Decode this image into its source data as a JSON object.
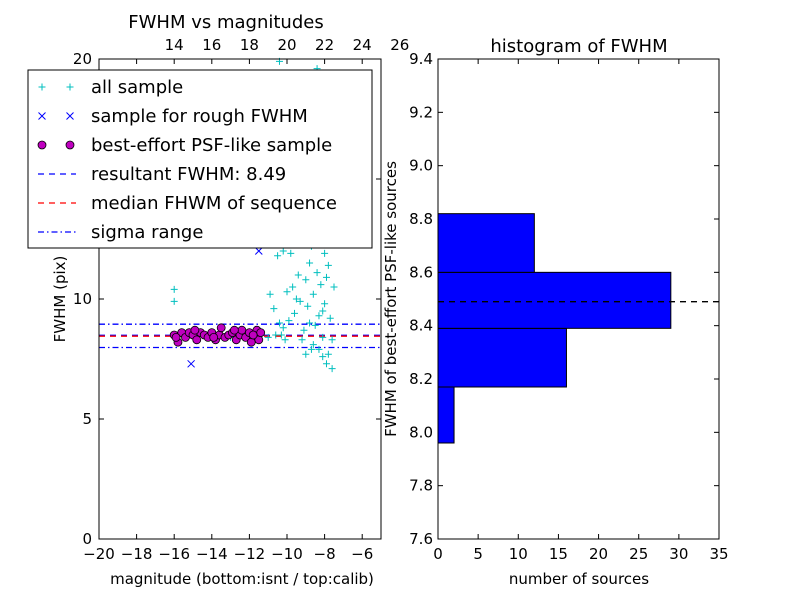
{
  "chart_data": [
    {
      "type": "scatter",
      "title": "FWHM vs magnitudes",
      "xlabel": "magnitude (bottom:isnt / top:calib)",
      "ylabel": "FWHM (pix)",
      "xlim": [
        -20,
        -5
      ],
      "ylim": [
        0,
        20
      ],
      "x_ticks": [
        -20,
        -18,
        -16,
        -14,
        -12,
        -10,
        -8,
        -6
      ],
      "x_tick_labels": [
        "−20",
        "−18",
        "−16",
        "−14",
        "−12",
        "−10",
        "−8",
        "−6"
      ],
      "y_ticks": [
        0,
        5,
        10,
        15,
        20
      ],
      "y_tick_labels": [
        "0",
        "5",
        "10",
        "15",
        "20"
      ],
      "top_axis": {
        "offset": 30,
        "ticks": [
          14,
          16,
          18,
          20,
          22,
          24,
          26
        ],
        "tick_labels": [
          "14",
          "16",
          "18",
          "20",
          "22",
          "24",
          "26"
        ]
      },
      "legend": {
        "placement": "top-left",
        "entries": [
          {
            "label": "all sample",
            "marker": "+",
            "color": "#00bfbf"
          },
          {
            "label": "sample for rough FWHM",
            "marker": "x",
            "color": "#0000ff"
          },
          {
            "label": "best-effort PSF-like sample",
            "marker": "o",
            "color": "#bf00bf"
          },
          {
            "label": "resultant FWHM: 8.49",
            "linestyle": "dashed",
            "color": "#0000ff"
          },
          {
            "label": "median FHWM of sequence",
            "linestyle": "dashed",
            "color": "#ff0000"
          },
          {
            "label": "sigma range",
            "linestyle": "dashdot",
            "color": "#0000ff"
          }
        ]
      },
      "lines": {
        "resultant_fwhm": 8.49,
        "median_fwhm": 8.45,
        "sigma_low": 7.98,
        "sigma_high": 8.95
      },
      "series": [
        {
          "name": "all sample",
          "marker": "+",
          "color": "#00bfbf",
          "points": [
            [
              -16.0,
              10.4
            ],
            [
              -16.0,
              9.9
            ],
            [
              -15.3,
              8.6
            ],
            [
              -14.8,
              8.5
            ],
            [
              -13.9,
              8.6
            ],
            [
              -13.0,
              8.4
            ],
            [
              -12.2,
              8.5
            ],
            [
              -11.8,
              8.3
            ],
            [
              -11.5,
              8.6
            ],
            [
              -11.0,
              8.4
            ],
            [
              -10.6,
              8.5
            ],
            [
              -10.3,
              8.5
            ],
            [
              -10.1,
              8.3
            ],
            [
              -10.4,
              9.0
            ],
            [
              -10.2,
              8.8
            ],
            [
              -10.7,
              9.6
            ],
            [
              -10.9,
              10.2
            ],
            [
              -10.5,
              11.8
            ],
            [
              -10.8,
              12.7
            ],
            [
              -10.1,
              14.2
            ],
            [
              -10.3,
              15.9
            ],
            [
              -9.8,
              11.9
            ],
            [
              -9.7,
              10.5
            ],
            [
              -9.6,
              9.4
            ],
            [
              -9.5,
              13.1
            ],
            [
              -9.6,
              16.8
            ],
            [
              -9.3,
              9.9
            ],
            [
              -9.1,
              8.7
            ],
            [
              -9.3,
              12.4
            ],
            [
              -9.2,
              14.6
            ],
            [
              -9.0,
              10.8
            ],
            [
              -8.9,
              9.7
            ],
            [
              -8.8,
              11.5
            ],
            [
              -8.9,
              13.7
            ],
            [
              -8.7,
              12.2
            ],
            [
              -8.6,
              10.2
            ],
            [
              -8.5,
              8.9
            ],
            [
              -8.6,
              14.8
            ],
            [
              -8.4,
              11.1
            ],
            [
              -8.3,
              9.3
            ],
            [
              -8.5,
              16.1
            ],
            [
              -8.2,
              12.8
            ],
            [
              -8.2,
              10.6
            ],
            [
              -8.1,
              8.4
            ],
            [
              -8.0,
              11.9
            ],
            [
              -8.0,
              9.8
            ],
            [
              -8.3,
              7.9
            ],
            [
              -8.1,
              7.6
            ],
            [
              -7.9,
              7.3
            ],
            [
              -7.8,
              7.7
            ],
            [
              -7.9,
              10.9
            ],
            [
              -7.7,
              9.2
            ],
            [
              -7.7,
              12.4
            ],
            [
              -7.6,
              7.1
            ],
            [
              -7.6,
              8.3
            ],
            [
              -7.5,
              10.5
            ],
            [
              -8.4,
              13.3
            ],
            [
              -8.7,
              7.9
            ],
            [
              -9.0,
              7.7
            ],
            [
              -8.8,
              9.0
            ],
            [
              -9.4,
              11.0
            ],
            [
              -9.9,
              9.1
            ],
            [
              -10.0,
              10.3
            ],
            [
              -10.6,
              13.5
            ],
            [
              -9.7,
              15.3
            ],
            [
              -8.0,
              14.1
            ],
            [
              -7.8,
              11.4
            ],
            [
              -8.1,
              9.5
            ],
            [
              -8.6,
              8.1
            ],
            [
              -9.2,
              8.3
            ],
            [
              -9.5,
              10.0
            ],
            [
              -10.2,
              12.0
            ],
            [
              -11.3,
              19.3
            ],
            [
              -10.4,
              19.9
            ],
            [
              -9.5,
              19.0
            ],
            [
              -8.4,
              19.6
            ],
            [
              -9.8,
              18.0
            ],
            [
              -8.9,
              17.4
            ],
            [
              -10.0,
              17.1
            ],
            [
              -8.3,
              16.6
            ],
            [
              -7.9,
              15.2
            ],
            [
              -8.7,
              15.8
            ],
            [
              -9.1,
              15.6
            ],
            [
              -7.7,
              13.0
            ]
          ]
        },
        {
          "name": "sample for rough FWHM",
          "marker": "x",
          "color": "#0000ff",
          "points": [
            [
              -15.1,
              7.3
            ],
            [
              -11.5,
              12.0
            ]
          ]
        },
        {
          "name": "best-effort PSF-like sample",
          "marker": "o",
          "color": "#bf00bf",
          "points": [
            [
              -16.0,
              8.5
            ],
            [
              -15.8,
              8.2
            ],
            [
              -15.6,
              8.6
            ],
            [
              -15.4,
              8.4
            ],
            [
              -15.2,
              8.6
            ],
            [
              -15.0,
              8.5
            ],
            [
              -14.8,
              8.3
            ],
            [
              -14.6,
              8.6
            ],
            [
              -14.4,
              8.5
            ],
            [
              -14.2,
              8.4
            ],
            [
              -14.0,
              8.6
            ],
            [
              -13.8,
              8.3
            ],
            [
              -13.6,
              8.5
            ],
            [
              -13.5,
              8.8
            ],
            [
              -13.3,
              8.4
            ],
            [
              -13.1,
              8.5
            ],
            [
              -12.9,
              8.6
            ],
            [
              -12.7,
              8.3
            ],
            [
              -12.5,
              8.5
            ],
            [
              -12.4,
              8.7
            ],
            [
              -12.2,
              8.4
            ],
            [
              -12.0,
              8.6
            ],
            [
              -11.9,
              8.2
            ],
            [
              -11.7,
              8.5
            ],
            [
              -11.6,
              8.7
            ],
            [
              -11.5,
              8.3
            ],
            [
              -11.4,
              8.6
            ],
            [
              -15.9,
              8.4
            ],
            [
              -14.9,
              8.7
            ],
            [
              -13.9,
              8.4
            ],
            [
              -12.8,
              8.7
            ],
            [
              -11.8,
              8.5
            ]
          ]
        }
      ]
    },
    {
      "type": "bar",
      "orientation": "horizontal",
      "title": "histogram of FWHM",
      "xlabel": "number of sources",
      "ylabel": "FWHM of best-effort PSF-like sources",
      "xlim": [
        0,
        35
      ],
      "ylim": [
        7.6,
        9.4
      ],
      "x_ticks": [
        0,
        5,
        10,
        15,
        20,
        25,
        30,
        35
      ],
      "x_tick_labels": [
        "0",
        "5",
        "10",
        "15",
        "20",
        "25",
        "30",
        "35"
      ],
      "y_ticks": [
        7.6,
        7.8,
        8.0,
        8.2,
        8.4,
        8.6,
        8.8,
        9.0,
        9.2,
        9.4
      ],
      "y_tick_labels": [
        "7.6",
        "7.8",
        "8.0",
        "8.2",
        "8.4",
        "8.6",
        "8.8",
        "9.0",
        "9.2",
        "9.4"
      ],
      "color": "#0000ff",
      "bins": [
        {
          "from": 7.96,
          "to": 8.17,
          "count": 2
        },
        {
          "from": 8.17,
          "to": 8.39,
          "count": 16
        },
        {
          "from": 8.39,
          "to": 8.6,
          "count": 29
        },
        {
          "from": 8.6,
          "to": 8.82,
          "count": 12
        }
      ],
      "reference_line": {
        "value": 8.49,
        "linestyle": "dashed",
        "color": "#000000"
      }
    }
  ]
}
